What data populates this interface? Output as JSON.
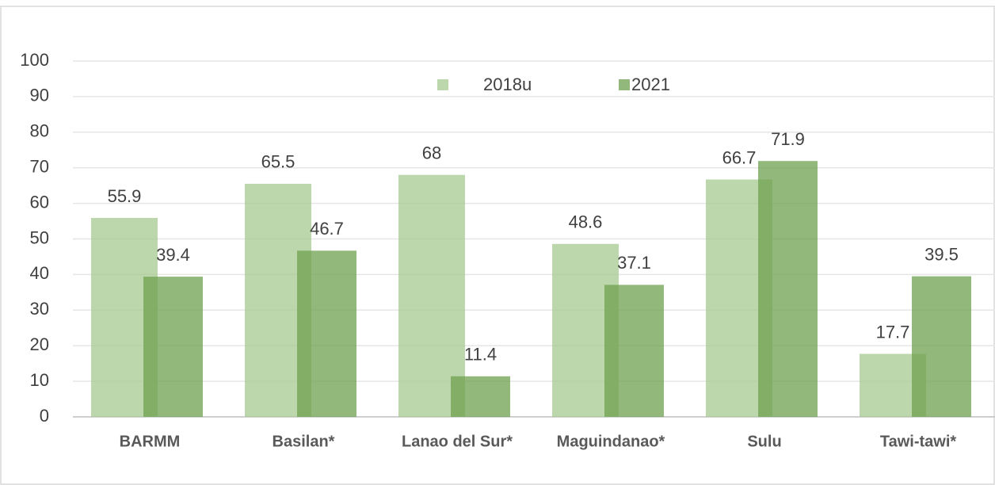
{
  "chart_data": {
    "type": "bar",
    "categories": [
      "BARMM",
      "Basilan*",
      "Lanao del Sur*",
      "Maguindanao*",
      "Sulu",
      "Tawi-tawi*"
    ],
    "series": [
      {
        "name": "2018u",
        "color": "#a6c98f",
        "values": [
          55.9,
          65.5,
          68,
          48.6,
          66.7,
          17.7
        ]
      },
      {
        "name": "2021",
        "color": "#6fa04f",
        "values": [
          39.4,
          46.7,
          11.4,
          37.1,
          71.9,
          39.5
        ]
      }
    ],
    "ylim": [
      0,
      100
    ],
    "yticks": [
      0,
      10,
      20,
      30,
      40,
      50,
      60,
      70,
      80,
      90,
      100
    ],
    "grid": true
  }
}
